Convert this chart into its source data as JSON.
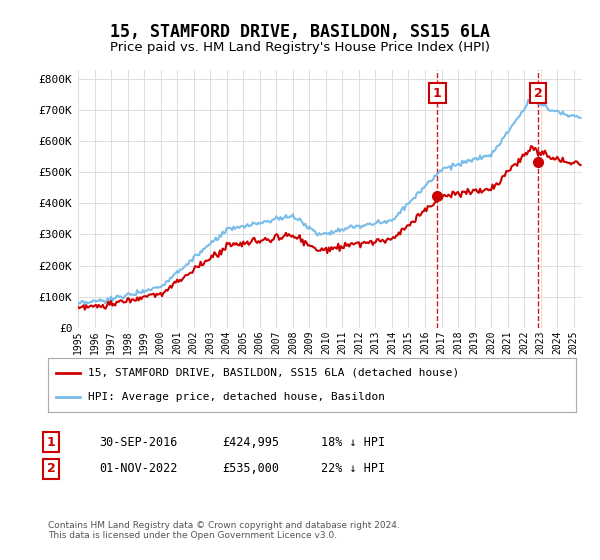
{
  "title": "15, STAMFORD DRIVE, BASILDON, SS15 6LA",
  "subtitle": "Price paid vs. HM Land Registry's House Price Index (HPI)",
  "title_fontsize": 12,
  "subtitle_fontsize": 9.5,
  "ytick_values": [
    0,
    100000,
    200000,
    300000,
    400000,
    500000,
    600000,
    700000,
    800000
  ],
  "ylim": [
    0,
    830000
  ],
  "sale1_x": 2016.75,
  "sale1_price": 424995,
  "sale2_x": 2022.83,
  "sale2_price": 535000,
  "hpi_color": "#7abde8",
  "price_color": "#cc0000",
  "dashed_color": "#cc0000",
  "annotation_box_color": "#cc0000",
  "legend_label_price": "15, STAMFORD DRIVE, BASILDON, SS15 6LA (detached house)",
  "legend_label_hpi": "HPI: Average price, detached house, Basildon",
  "footer_text": "Contains HM Land Registry data © Crown copyright and database right 2024.\nThis data is licensed under the Open Government Licence v3.0.",
  "table_row1": [
    "1",
    "30-SEP-2016",
    "£424,995",
    "18% ↓ HPI"
  ],
  "table_row2": [
    "2",
    "01-NOV-2022",
    "£535,000",
    "22% ↓ HPI"
  ],
  "background_color": "#ffffff",
  "grid_color": "#dddddd"
}
